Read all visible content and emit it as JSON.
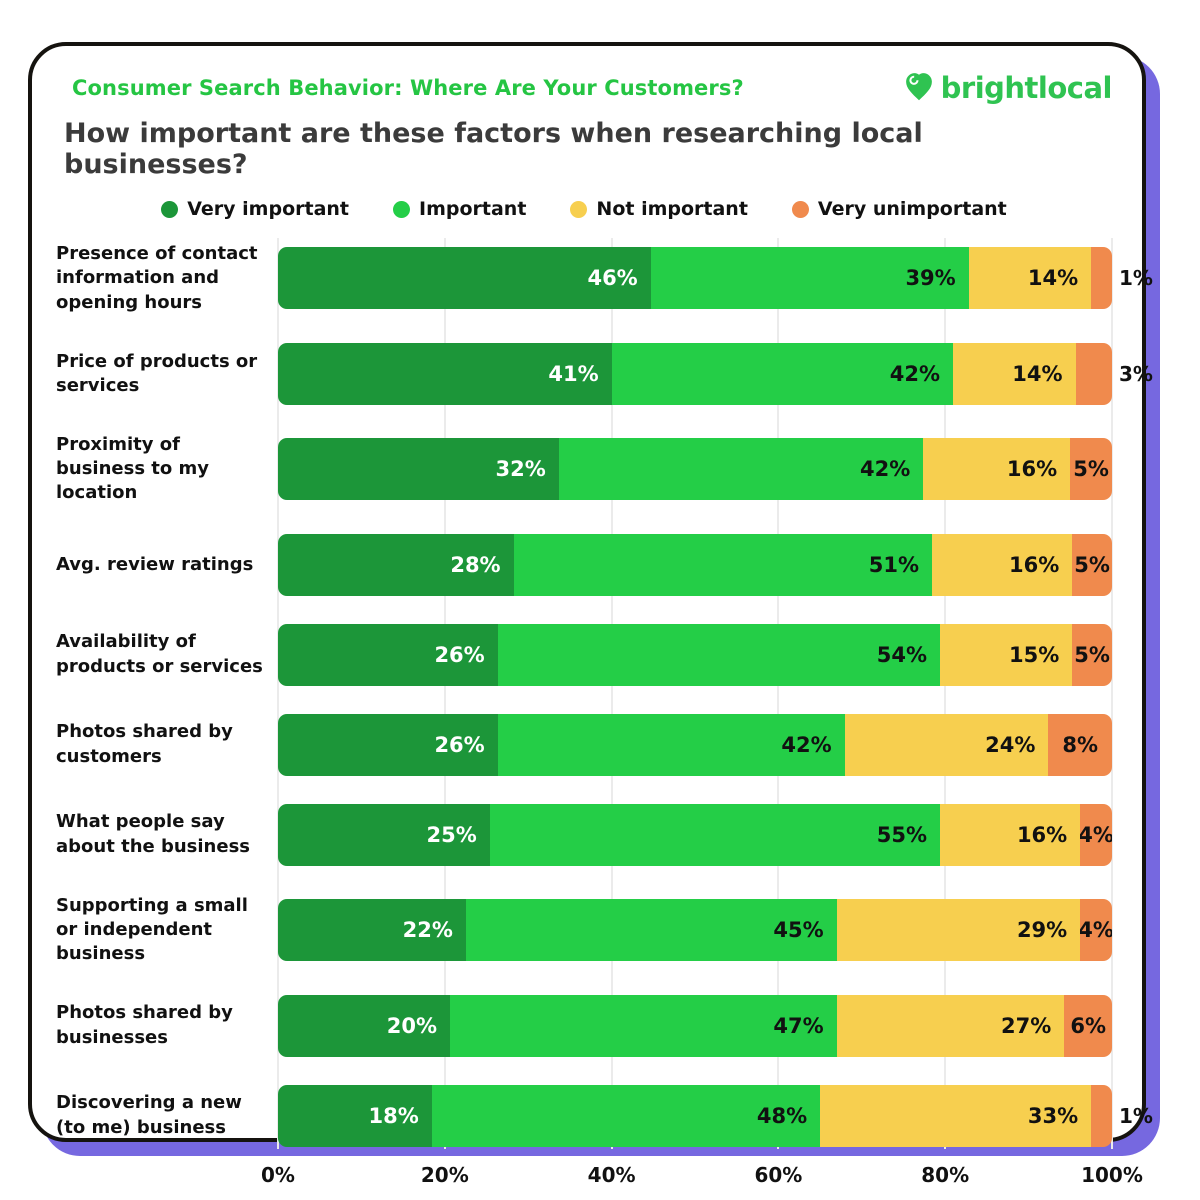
{
  "theme": {
    "accent_green": "#25c543",
    "brand_green": "#2fc351",
    "heading_color": "#3b3b3b",
    "card_shadow": "#7668e0",
    "grid_color": "#ebebeb"
  },
  "header": {
    "kicker": "Consumer Search Behavior: Where Are Your Customers?",
    "title": "How important are these factors when researching local businesses?",
    "brand": "brightlocal"
  },
  "legend": [
    {
      "label": "Very important",
      "color": "#1c9639"
    },
    {
      "label": "Important",
      "color": "#24ce47"
    },
    {
      "label": "Not important",
      "color": "#f7cf4f"
    },
    {
      "label": "Very unimportant",
      "color": "#f08a4d"
    }
  ],
  "chart_data": {
    "type": "bar",
    "orientation": "horizontal",
    "stacked": true,
    "title": "How important are these factors when researching local businesses?",
    "xlabel": "",
    "ylabel": "",
    "xlim": [
      0,
      100
    ],
    "grid": true,
    "legend_position": "top",
    "x_axis_ticks": [
      "0%",
      "20%",
      "40%",
      "60%",
      "80%",
      "100%"
    ],
    "categories": [
      "Presence of contact information and opening hours",
      "Price of products or services",
      "Proximity of business to my location",
      "Avg. review ratings",
      "Availability of products or services",
      "Photos shared by customers",
      "What people say about the business",
      "Supporting a small or independent business",
      "Photos shared by businesses",
      "Discovering a new (to me) business"
    ],
    "series": [
      {
        "name": "Very important",
        "color": "#1c9639",
        "label_color": "#ffffff",
        "values": [
          46,
          41,
          32,
          28,
          26,
          26,
          25,
          22,
          20,
          18
        ]
      },
      {
        "name": "Important",
        "color": "#24ce47",
        "label_color": "#111111",
        "values": [
          39,
          42,
          42,
          51,
          54,
          42,
          55,
          45,
          47,
          48
        ]
      },
      {
        "name": "Not important",
        "color": "#f7cf4f",
        "label_color": "#111111",
        "values": [
          14,
          14,
          16,
          16,
          15,
          24,
          16,
          29,
          27,
          33
        ]
      },
      {
        "name": "Very unimportant",
        "color": "#f08a4d",
        "label_color": "#111111",
        "values": [
          1,
          3,
          5,
          5,
          5,
          8,
          4,
          4,
          6,
          1
        ]
      }
    ],
    "value_suffix": "%",
    "outside_label_threshold": 4
  }
}
